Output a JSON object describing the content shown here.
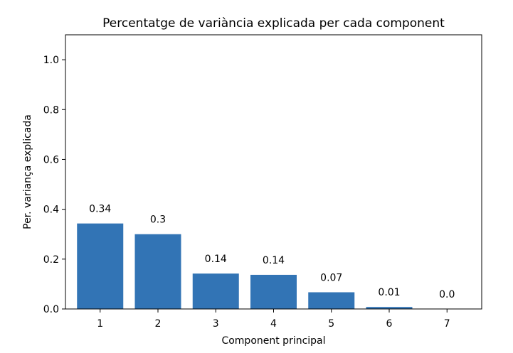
{
  "chart_data": {
    "type": "bar",
    "title": "Percentatge de variància explicada per cada component",
    "xlabel": "Component principal",
    "ylabel": "Per. variança explicada",
    "categories": [
      "1",
      "2",
      "3",
      "4",
      "5",
      "6",
      "7"
    ],
    "values": [
      0.343,
      0.3,
      0.142,
      0.137,
      0.067,
      0.008,
      0.0
    ],
    "data_labels": [
      "0.34",
      "0.3",
      "0.14",
      "0.14",
      "0.07",
      "0.01",
      "0.0"
    ],
    "ylim": [
      0,
      1.1
    ],
    "yticks": [
      0.0,
      0.2,
      0.4,
      0.6,
      0.8,
      1.0
    ],
    "ytick_labels": [
      "0.0",
      "0.2",
      "0.4",
      "0.6",
      "0.8",
      "1.0"
    ],
    "grid": false,
    "bar_color": "#3274b5"
  }
}
